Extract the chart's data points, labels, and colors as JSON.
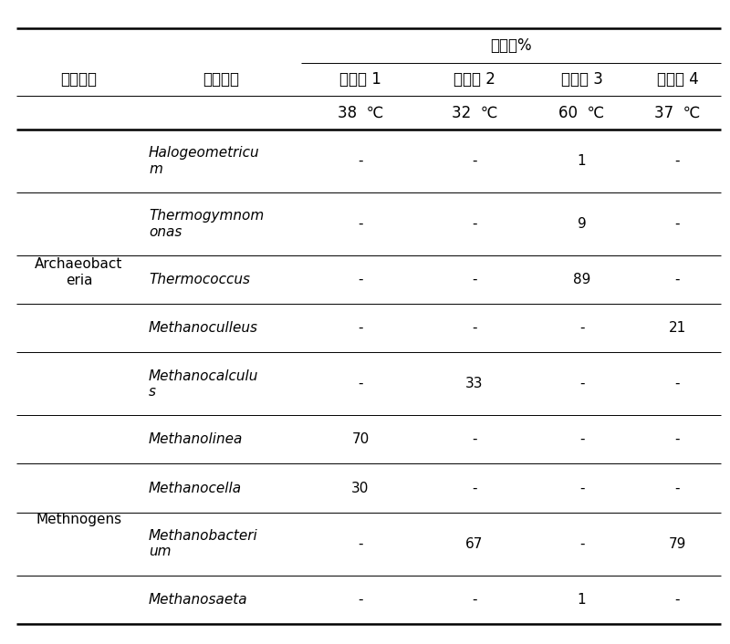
{
  "header_col1": "古菌类型",
  "header_col2": "系统发育",
  "header_abundance": "丰度，%",
  "header_examples": [
    "实施例 1",
    "实施例 2",
    "实施例 3",
    "实施例 4"
  ],
  "header_temps": [
    "38  ℃",
    "32  ℃",
    "60  ℃",
    "37  ℃"
  ],
  "groups": [
    {
      "name": "Archaeobact\neria",
      "species": [
        {
          "name": "Halogeometricu\nm",
          "values": [
            "-",
            "-",
            "1",
            "-"
          ]
        },
        {
          "name": "Thermogymnom\nonas",
          "values": [
            "-",
            "-",
            "9",
            "-"
          ]
        },
        {
          "name": "Thermococcus",
          "values": [
            "-",
            "-",
            "89",
            "-"
          ]
        },
        {
          "name": "Methanoculleus",
          "values": [
            "-",
            "-",
            "-",
            "21"
          ]
        },
        {
          "name": "Methanocalculu\ns",
          "values": [
            "-",
            "33",
            "-",
            "-"
          ]
        }
      ]
    },
    {
      "name": "Methnogens",
      "species": [
        {
          "name": "Methanolinea",
          "values": [
            "70",
            "-",
            "-",
            "-"
          ]
        },
        {
          "name": "Methanocella",
          "values": [
            "30",
            "-",
            "-",
            "-"
          ]
        },
        {
          "name": "Methanobacteri\num",
          "values": [
            "-",
            "67",
            "-",
            "79"
          ]
        },
        {
          "name": "Methanosaeta",
          "values": [
            "-",
            "-",
            "1",
            "-"
          ]
        }
      ]
    }
  ],
  "bg_color": "#ffffff",
  "text_color": "#000000",
  "line_color": "#000000",
  "lw_thick": 1.8,
  "lw_thin": 0.7,
  "fs_chinese": 12,
  "fs_latin": 11,
  "fs_data": 11
}
